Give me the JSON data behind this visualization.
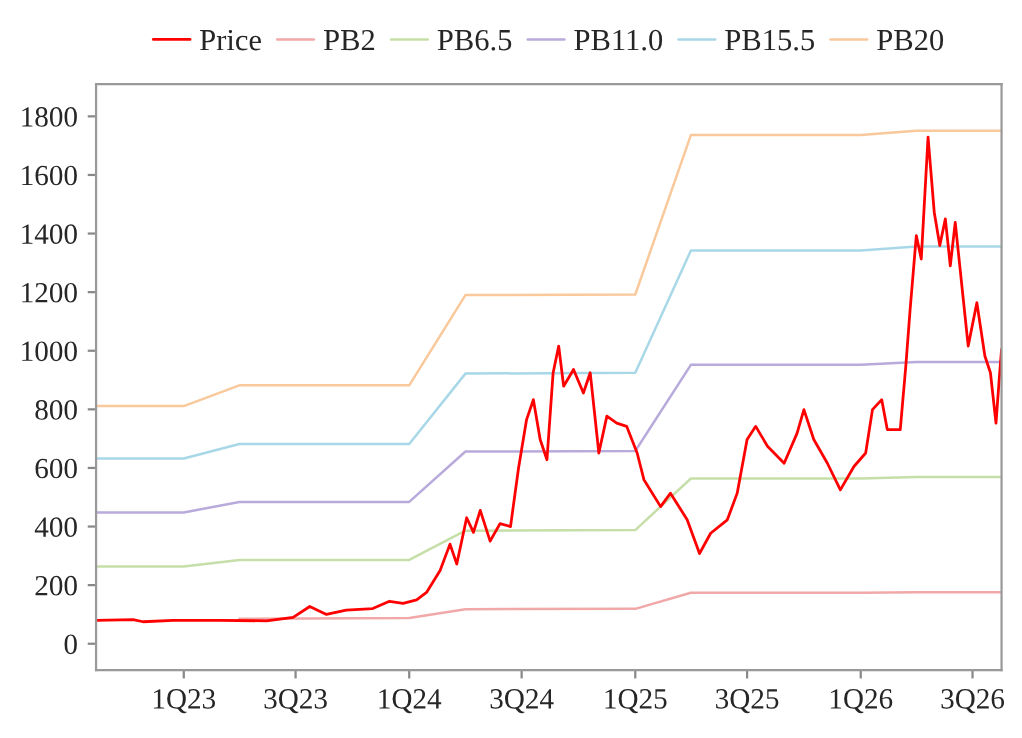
{
  "chart_data": {
    "type": "line",
    "legend": "top",
    "grid": false,
    "marker": "none",
    "line_style": "solid",
    "xlim": [
      "2022-08-12",
      "2026-08-17"
    ],
    "xticks": [
      {
        "value": "2023-01-01",
        "label": "1Q23"
      },
      {
        "value": "2023-07-01",
        "label": "3Q23"
      },
      {
        "value": "2024-01-01",
        "label": "1Q24"
      },
      {
        "value": "2024-07-01",
        "label": "3Q24"
      },
      {
        "value": "2025-01-01",
        "label": "1Q25"
      },
      {
        "value": "2025-07-01",
        "label": "3Q25"
      },
      {
        "value": "2026-01-01",
        "label": "1Q26"
      },
      {
        "value": "2026-07-01",
        "label": "3Q26"
      }
    ],
    "ylim": [
      -90,
      1910
    ],
    "yticks": [
      0,
      200,
      400,
      600,
      800,
      1000,
      1200,
      1400,
      1600,
      1800
    ],
    "series": [
      {
        "name": "PB2",
        "color": "#f0a8a8",
        "x": [
          "2023-04-01",
          "2024-01-01",
          "2024-04-01",
          "2025-01-01",
          "2025-04-01",
          "2026-01-01",
          "2026-04-01",
          "2026-08-17"
        ],
        "values": [
          85,
          88,
          118,
          119,
          174,
          174,
          176,
          176
        ]
      },
      {
        "name": "PB6.5",
        "color": "#c6dfa8",
        "x": [
          "2022-08-12",
          "2023-01-01",
          "2023-04-01",
          "2024-01-01",
          "2024-04-01",
          "2025-01-01",
          "2025-04-01",
          "2026-01-01",
          "2026-04-01",
          "2026-08-17"
        ],
        "values": [
          264,
          264,
          286,
          286,
          386,
          388,
          564,
          564,
          569,
          569
        ]
      },
      {
        "name": "PB11.0",
        "color": "#b8aadb",
        "x": [
          "2022-08-12",
          "2023-01-01",
          "2023-04-01",
          "2024-01-01",
          "2024-04-01",
          "2025-01-01",
          "2025-04-01",
          "2026-01-01",
          "2026-04-01",
          "2026-08-17"
        ],
        "values": [
          448,
          448,
          484,
          484,
          656,
          658,
          952,
          952,
          962,
          962
        ]
      },
      {
        "name": "PB15.5",
        "color": "#a8d8e8",
        "x": [
          "2022-08-12",
          "2023-01-01",
          "2023-04-01",
          "2024-01-01",
          "2024-04-01",
          "2025-01-01",
          "2025-04-01",
          "2026-01-01",
          "2026-04-01",
          "2026-08-17"
        ],
        "values": [
          632,
          632,
          682,
          682,
          922,
          925,
          1342,
          1342,
          1356,
          1356
        ]
      },
      {
        "name": "PB20",
        "color": "#f9c89b",
        "x": [
          "2022-08-12",
          "2023-01-01",
          "2023-04-01",
          "2024-01-01",
          "2024-04-01",
          "2025-01-01",
          "2025-04-01",
          "2026-01-01",
          "2026-04-01",
          "2026-08-17"
        ],
        "values": [
          811,
          811,
          882,
          882,
          1190,
          1192,
          1736,
          1736,
          1751,
          1751
        ]
      },
      {
        "name": "Price",
        "color": "#ff0000",
        "x": [
          "2022-08-12",
          "2022-10-11",
          "2022-10-27",
          "2022-12-15",
          "2023-02-28",
          "2023-05-15",
          "2023-06-27",
          "2023-07-24",
          "2023-08-20",
          "2023-09-21",
          "2023-11-03",
          "2023-11-30",
          "2023-12-22",
          "2024-01-13",
          "2024-01-29",
          "2024-02-20",
          "2024-03-07",
          "2024-03-18",
          "2024-04-03",
          "2024-04-14",
          "2024-04-25",
          "2024-05-11",
          "2024-05-27",
          "2024-06-13",
          "2024-06-26",
          "2024-07-09",
          "2024-07-20",
          "2024-07-31",
          "2024-08-11",
          "2024-08-21",
          "2024-08-30",
          "2024-09-07",
          "2024-09-23",
          "2024-10-09",
          "2024-10-20",
          "2024-11-03",
          "2024-11-16",
          "2024-12-02",
          "2024-12-18",
          "2025-01-04",
          "2025-01-15",
          "2025-02-11",
          "2025-02-27",
          "2025-03-26",
          "2025-04-15",
          "2025-05-03",
          "2025-05-30",
          "2025-06-15",
          "2025-07-01",
          "2025-07-15",
          "2025-08-03",
          "2025-08-30",
          "2025-09-20",
          "2025-10-01",
          "2025-10-17",
          "2025-11-08",
          "2025-11-29",
          "2025-12-21",
          "2026-01-09",
          "2026-01-20",
          "2026-02-04",
          "2026-02-13",
          "2026-03-06",
          "2026-03-15",
          "2026-03-22",
          "2026-04-01",
          "2026-04-09",
          "2026-04-20",
          "2026-04-30",
          "2026-05-09",
          "2026-05-18",
          "2026-05-26",
          "2026-06-03",
          "2026-06-16",
          "2026-06-24",
          "2026-07-08",
          "2026-07-21",
          "2026-07-30",
          "2026-08-08",
          "2026-08-14",
          "2026-08-17"
        ],
        "values": [
          80,
          82,
          75,
          80,
          80,
          78,
          90,
          127,
          100,
          115,
          120,
          145,
          138,
          150,
          175,
          250,
          340,
          272,
          430,
          380,
          455,
          350,
          410,
          400,
          600,
          765,
          833,
          697,
          628,
          925,
          1016,
          879,
          936,
          856,
          925,
          651,
          777,
          753,
          742,
          651,
          560,
          468,
          514,
          423,
          308,
          377,
          423,
          514,
          697,
          742,
          674,
          616,
          719,
          799,
          697,
          616,
          525,
          605,
          651,
          799,
          833,
          731,
          731,
          948,
          1142,
          1393,
          1313,
          1729,
          1473,
          1359,
          1450,
          1290,
          1438,
          1176,
          1016,
          1164,
          982,
          925,
          753,
          925,
          1005
        ]
      }
    ]
  }
}
